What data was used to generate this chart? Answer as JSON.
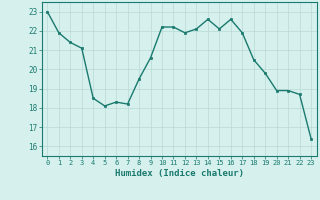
{
  "x": [
    0,
    1,
    2,
    3,
    4,
    5,
    6,
    7,
    8,
    9,
    10,
    11,
    12,
    13,
    14,
    15,
    16,
    17,
    18,
    19,
    20,
    21,
    22,
    23
  ],
  "y": [
    23.0,
    21.9,
    21.4,
    21.1,
    18.5,
    18.1,
    18.3,
    18.2,
    19.5,
    20.6,
    22.2,
    22.2,
    21.9,
    22.1,
    22.6,
    22.1,
    22.6,
    21.9,
    20.5,
    19.8,
    18.9,
    18.9,
    18.7,
    16.4
  ],
  "xlabel": "Humidex (Indice chaleur)",
  "xlim": [
    -0.5,
    23.5
  ],
  "ylim": [
    15.5,
    23.5
  ],
  "yticks": [
    16,
    17,
    18,
    19,
    20,
    21,
    22,
    23
  ],
  "xticks": [
    0,
    1,
    2,
    3,
    4,
    5,
    6,
    7,
    8,
    9,
    10,
    11,
    12,
    13,
    14,
    15,
    16,
    17,
    18,
    19,
    20,
    21,
    22,
    23
  ],
  "line_color": "#1a7a6e",
  "marker_color": "#1a7a6e",
  "bg_color": "#d6f0ee",
  "grid_color": "#b8d8d4",
  "axis_color": "#1a7a6e"
}
